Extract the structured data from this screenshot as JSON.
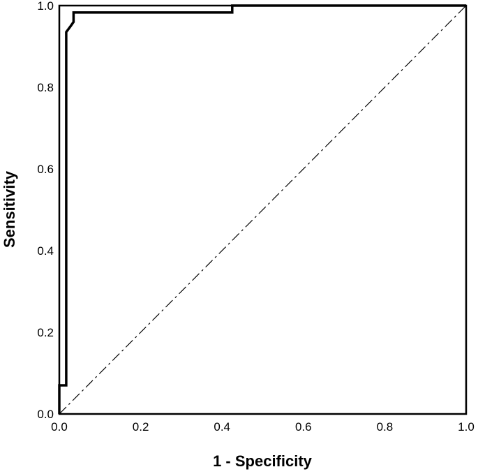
{
  "chart_data": {
    "type": "line",
    "xlabel": "1 - Specificity",
    "ylabel": "Sensitivity",
    "xlim": [
      0,
      1
    ],
    "ylim": [
      0,
      1
    ],
    "xticks": [
      0.0,
      0.2,
      0.4,
      0.6,
      0.8,
      1.0
    ],
    "yticks": [
      0.0,
      0.2,
      0.4,
      0.6,
      0.8,
      1.0
    ],
    "tick_labels": [
      "0.0",
      "0.2",
      "0.4",
      "0.6",
      "0.8",
      "1.0"
    ],
    "grid": false,
    "legend": "none",
    "series": [
      {
        "style": "solid",
        "color": "#000000",
        "x": [
          0.0,
          0.0,
          0.017,
          0.017,
          0.028,
          0.035,
          0.035,
          0.425,
          0.425,
          1.0
        ],
        "y": [
          0.0,
          0.07,
          0.07,
          0.935,
          0.95,
          0.96,
          0.983,
          0.983,
          1.0,
          1.0
        ]
      },
      {
        "style": "dash-dot",
        "color": "#000000",
        "x": [
          0.0,
          1.0
        ],
        "y": [
          0.0,
          1.0
        ]
      }
    ]
  }
}
